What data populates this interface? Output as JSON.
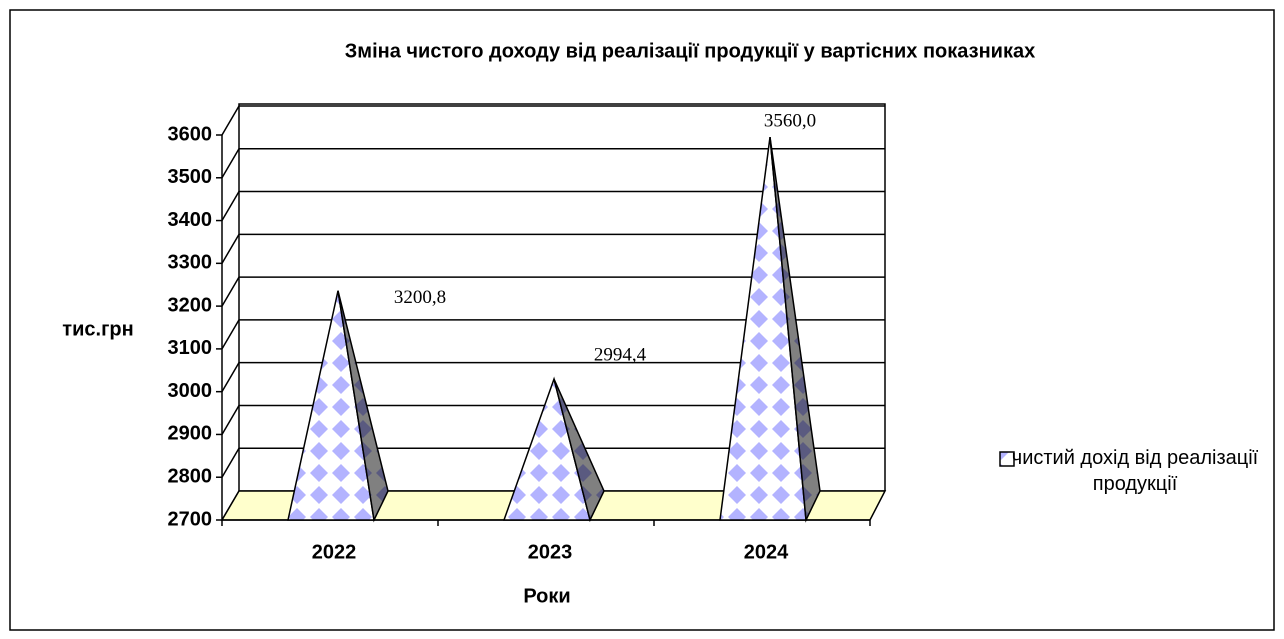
{
  "chart_data": {
    "type": "pyramid",
    "title": "Зміна чистого доходу від реалізації продукції у вартісних показниках",
    "x_label": "Роки",
    "y_label": "тис.грн",
    "categories": [
      "2022",
      "2023",
      "2024"
    ],
    "series": [
      {
        "name": "чистий дохід від реалізації продукції",
        "color": "#9999ff",
        "values": [
          3200.8,
          2994.4,
          3560.0
        ],
        "value_labels": [
          "3200,8",
          "2994,4",
          "3560,0"
        ]
      }
    ],
    "ylim": [
      2700,
      3600
    ],
    "yticks": [
      2700,
      2800,
      2900,
      3000,
      3100,
      3200,
      3300,
      3400,
      3500,
      3600
    ],
    "grid": true,
    "legend": "right"
  }
}
